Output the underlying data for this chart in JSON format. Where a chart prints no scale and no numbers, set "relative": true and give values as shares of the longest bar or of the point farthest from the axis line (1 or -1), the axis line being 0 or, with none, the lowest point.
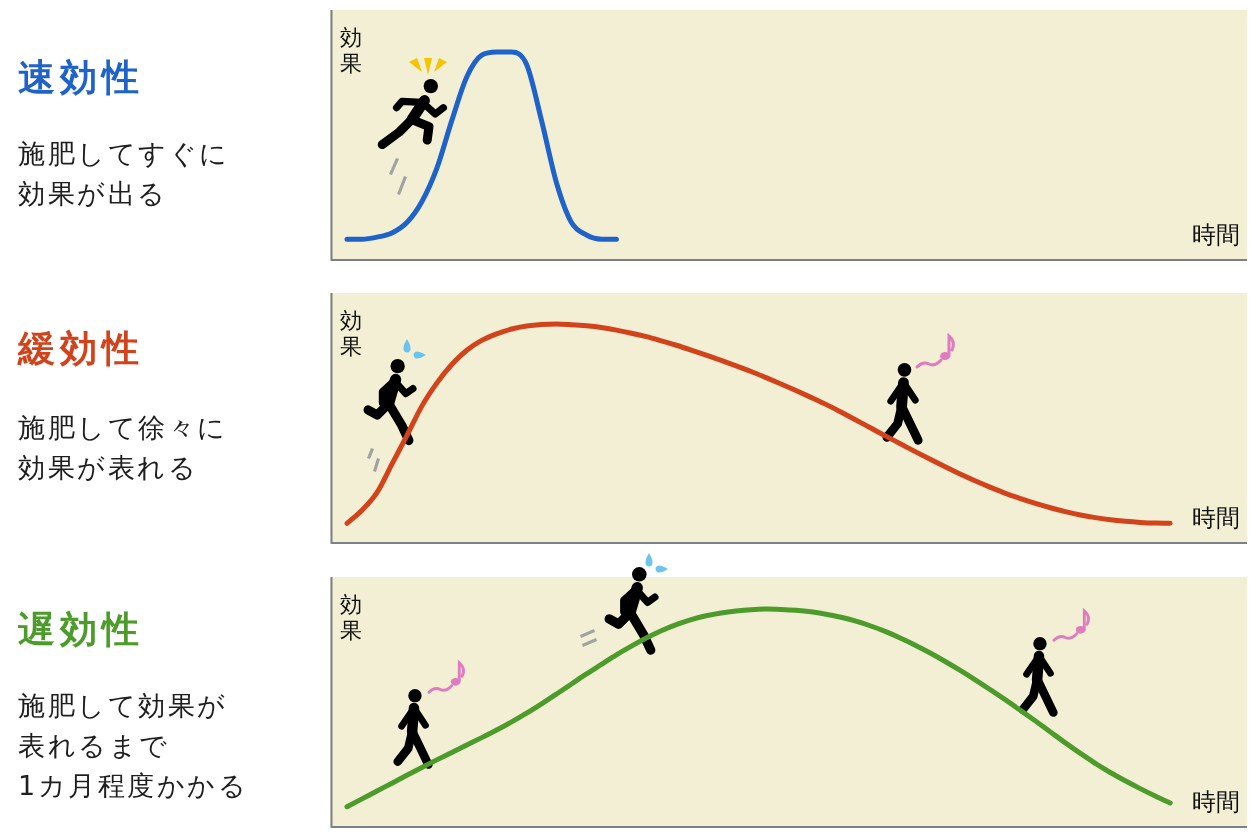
{
  "chart_data": [
    {
      "type": "line",
      "title": "速効性",
      "subtitle": "施肥してすぐに効果が出る",
      "xlabel": "時間",
      "ylabel": "効果",
      "relative": true,
      "categories": [
        null,
        null,
        null,
        null,
        null,
        null,
        null,
        null,
        null,
        null,
        null,
        null,
        null,
        null,
        null,
        null,
        null,
        null,
        null,
        null,
        null,
        null,
        null,
        null,
        null,
        null,
        null,
        null,
        null,
        null,
        null,
        null,
        null,
        null,
        null,
        null,
        null,
        null,
        null,
        null,
        null,
        null,
        null,
        null,
        null,
        null,
        null,
        null,
        null,
        null,
        null,
        null,
        null,
        null,
        null,
        null,
        null,
        null,
        null,
        null,
        null
      ],
      "series": [
        {
          "color": "#1f63c9",
          "values": [
            0.1,
            0.1,
            0.11,
            0.13,
            0.18,
            0.28,
            0.44,
            0.67,
            0.88,
            0.985,
            1,
            1,
            0.94,
            0.67,
            0.37,
            0.18,
            0.12,
            0.1,
            0.1,
            null,
            null,
            null,
            null,
            null,
            null,
            null,
            null,
            null,
            null,
            null,
            null,
            null,
            null,
            null,
            null,
            null,
            null,
            null,
            null,
            null,
            null,
            null,
            null,
            null,
            null,
            null,
            null,
            null,
            null,
            null,
            null,
            null,
            null,
            null,
            null,
            null,
            null,
            null,
            null,
            null,
            null
          ]
        }
      ]
    },
    {
      "type": "line",
      "title": "緩効性",
      "subtitle": "施肥して徐々に効果が表れる",
      "xlabel": "時間",
      "ylabel": "効果",
      "relative": true,
      "categories": [
        null,
        null,
        null,
        null,
        null,
        null,
        null,
        null,
        null,
        null,
        null,
        null,
        null,
        null,
        null,
        null,
        null,
        null,
        null,
        null,
        null,
        null,
        null,
        null,
        null,
        null,
        null,
        null,
        null,
        null,
        null,
        null,
        null,
        null,
        null,
        null,
        null,
        null,
        null,
        null,
        null,
        null,
        null,
        null,
        null,
        null,
        null,
        null,
        null,
        null,
        null,
        null,
        null,
        null,
        null,
        null,
        null,
        null,
        null,
        null,
        null
      ],
      "series": [
        {
          "color": "#d2431b",
          "values": [
            0.09,
            0.15,
            0.23,
            0.36,
            0.49,
            0.625,
            0.73,
            0.815,
            0.88,
            0.925,
            0.955,
            0.977,
            0.991,
            0.998,
            1,
            0.997,
            0.992,
            0.984,
            0.972,
            0.958,
            0.942,
            0.923,
            0.903,
            0.881,
            0.858,
            0.834,
            0.809,
            0.783,
            0.755,
            0.726,
            0.696,
            0.665,
            0.633,
            0.598,
            0.562,
            0.525,
            0.488,
            0.452,
            0.416,
            0.381,
            0.347,
            0.314,
            0.283,
            0.254,
            0.227,
            0.203,
            0.181,
            0.161,
            0.143,
            0.128,
            0.116,
            0.106,
            0.099,
            0.094,
            0.091,
            0.09,
            null,
            null,
            null,
            null,
            null
          ]
        }
      ]
    },
    {
      "type": "line",
      "title": "遅効性",
      "subtitle": "施肥して効果が表れるまで1カ月程度かかる",
      "xlabel": "時間",
      "ylabel": "効果",
      "relative": true,
      "categories": [
        null,
        null,
        null,
        null,
        null,
        null,
        null,
        null,
        null,
        null,
        null,
        null,
        null,
        null,
        null,
        null,
        null,
        null,
        null,
        null,
        null,
        null,
        null,
        null,
        null,
        null,
        null,
        null,
        null,
        null,
        null,
        null,
        null,
        null,
        null,
        null,
        null,
        null,
        null,
        null,
        null,
        null,
        null,
        null,
        null,
        null,
        null,
        null,
        null,
        null,
        null,
        null,
        null,
        null,
        null,
        null,
        null,
        null,
        null,
        null,
        null
      ],
      "series": [
        {
          "color": "#4d9b2b",
          "values": [
            0.093,
            0.129,
            0.165,
            0.201,
            0.237,
            0.273,
            0.308,
            0.342,
            0.376,
            0.41,
            0.445,
            0.482,
            0.522,
            0.565,
            0.61,
            0.656,
            0.702,
            0.746,
            0.79,
            0.83,
            0.867,
            0.9,
            0.928,
            0.951,
            0.969,
            0.982,
            0.991,
            0.997,
            1,
            0.998,
            0.994,
            0.987,
            0.976,
            0.962,
            0.944,
            0.922,
            0.896,
            0.866,
            0.833,
            0.797,
            0.758,
            0.717,
            0.674,
            0.629,
            0.583,
            0.535,
            0.486,
            0.436,
            0.386,
            0.338,
            0.292,
            0.25,
            0.212,
            0.176,
            0.142,
            0.11,
            null,
            null,
            null,
            null,
            null
          ]
        }
      ]
    }
  ]
}
